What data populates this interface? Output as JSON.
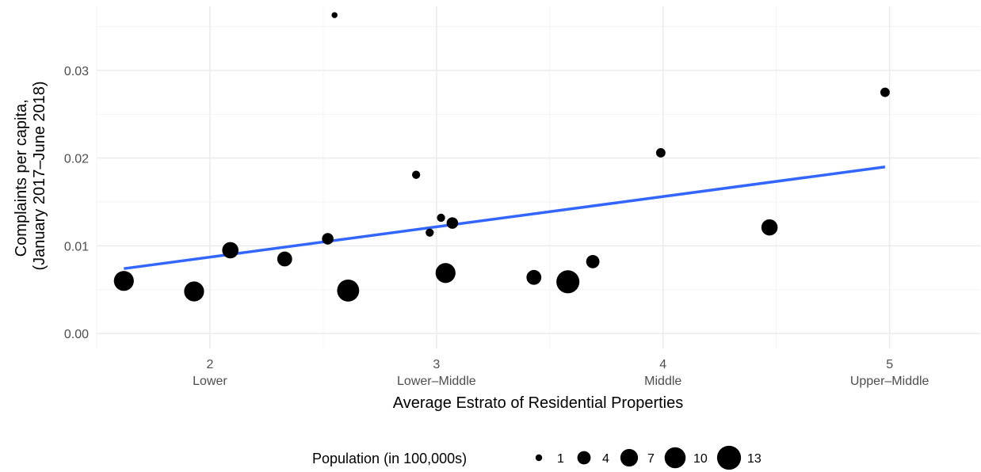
{
  "chart_data": {
    "type": "scatter",
    "xlabel": "Average Estrato of Residential Properties",
    "ylabel_lines": [
      "Complaints per capita,",
      "(January 2017–June 2018)"
    ],
    "xlim": [
      1.5,
      5.4
    ],
    "ylim": [
      -0.0017,
      0.0373
    ],
    "x_ticks": [
      {
        "value": 2,
        "label": "2",
        "sublabel": "Lower"
      },
      {
        "value": 3,
        "label": "3",
        "sublabel": "Lower–Middle"
      },
      {
        "value": 4,
        "label": "4",
        "sublabel": "Middle"
      },
      {
        "value": 5,
        "label": "5",
        "sublabel": "Upper–Middle"
      }
    ],
    "y_ticks": [
      {
        "value": 0.0,
        "label": "0.00"
      },
      {
        "value": 0.01,
        "label": "0.01"
      },
      {
        "value": 0.02,
        "label": "0.02"
      },
      {
        "value": 0.03,
        "label": "0.03"
      }
    ],
    "x_minor": [
      1.5,
      2.5,
      3.5,
      4.5
    ],
    "y_minor": [
      0.005,
      0.015,
      0.025,
      0.035
    ],
    "grid": true,
    "point_color": "#000000",
    "points": [
      {
        "x": 1.62,
        "y": 0.006,
        "size": 9
      },
      {
        "x": 1.93,
        "y": 0.0048,
        "size": 9
      },
      {
        "x": 2.09,
        "y": 0.0095,
        "size": 6
      },
      {
        "x": 2.33,
        "y": 0.0085,
        "size": 5
      },
      {
        "x": 2.52,
        "y": 0.0108,
        "size": 3
      },
      {
        "x": 2.55,
        "y": 0.0363,
        "size": 0.8
      },
      {
        "x": 2.61,
        "y": 0.0049,
        "size": 11
      },
      {
        "x": 2.91,
        "y": 0.0181,
        "size": 1.5
      },
      {
        "x": 2.97,
        "y": 0.0115,
        "size": 1.5
      },
      {
        "x": 3.02,
        "y": 0.0132,
        "size": 1.5
      },
      {
        "x": 3.04,
        "y": 0.0069,
        "size": 9
      },
      {
        "x": 3.07,
        "y": 0.0126,
        "size": 3
      },
      {
        "x": 3.43,
        "y": 0.0064,
        "size": 5
      },
      {
        "x": 3.58,
        "y": 0.0059,
        "size": 12
      },
      {
        "x": 3.69,
        "y": 0.0082,
        "size": 4
      },
      {
        "x": 3.99,
        "y": 0.0206,
        "size": 2
      },
      {
        "x": 4.47,
        "y": 0.0121,
        "size": 6
      },
      {
        "x": 4.98,
        "y": 0.0275,
        "size": 2
      }
    ],
    "trend": {
      "x": [
        1.62,
        4.98
      ],
      "y": [
        0.0074,
        0.019
      ],
      "color": "#3366ff"
    },
    "legend": {
      "title": "Population (in 100,000s)",
      "position": "bottom",
      "entries": [
        {
          "label": "1",
          "size": 1
        },
        {
          "label": "4",
          "size": 4
        },
        {
          "label": "7",
          "size": 7
        },
        {
          "label": "10",
          "size": 10
        },
        {
          "label": "13",
          "size": 13
        }
      ]
    }
  }
}
